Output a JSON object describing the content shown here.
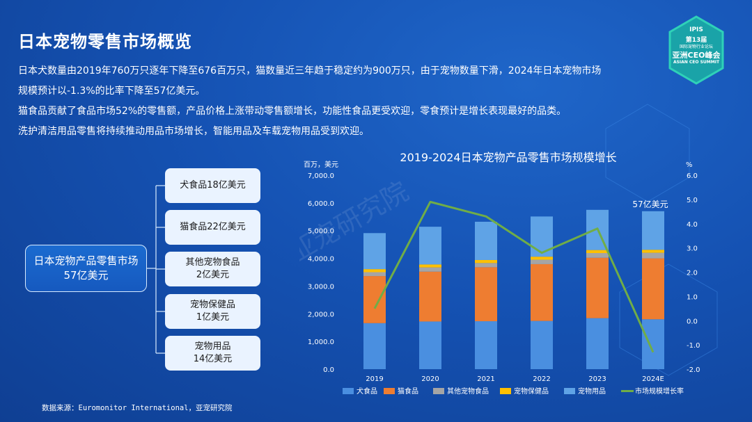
{
  "page": {
    "title": "日本宠物零售市场概览",
    "intro_lines": [
      "日本犬数量由2019年760万只逐年下降至676百万只，猫数量近三年趋于稳定约为900万只，由于宠物数量下滑，2024年日本宠物市场",
      "规模预计以-1.3%的比率下降至57亿美元。",
      "猫食品贡献了食品市场52%的零售额，产品价格上涨带动零售额增长，功能性食品更受欢迎，零食预计是增长表现最好的品类。",
      "洗护清洁用品零售将持续推动用品市场增长，智能用品及车载宠物用品受到欢迎。"
    ],
    "source": "数据来源：Euromonitor International，亚宠研究院",
    "watermark": "亚宠研究院"
  },
  "logo": {
    "line1": "IPIS",
    "line2": "第13届",
    "line3": "国际宠物行业论坛",
    "line4": "亚洲CEO峰会",
    "line5": "ASIAN CEO SUMMIT"
  },
  "tree": {
    "root_line1": "日本宠物产品零售市场",
    "root_line2": "57亿美元",
    "nodes": [
      {
        "line1": "犬食品18亿美元",
        "line2": ""
      },
      {
        "line1": "猫食品22亿美元",
        "line2": ""
      },
      {
        "line1": "其他宠物食品",
        "line2": "2亿美元"
      },
      {
        "line1": "宠物保健品",
        "line2": "1亿美元"
      },
      {
        "line1": "宠物用品",
        "line2": "14亿美元"
      }
    ]
  },
  "colors": {
    "dog_food": "#4a8fe0",
    "cat_food": "#ee7d31",
    "other_food": "#a5a5a5",
    "health": "#ffc000",
    "supplies": "#5fa3e6",
    "growth": "#70ad47"
  },
  "chart_data": {
    "type": "bar",
    "stacked": true,
    "title": "2019-2024日本宠物产品零售市场规模增长",
    "y_left_unit": "百万，美元",
    "y_right_unit": "%",
    "y_left_ticks": [
      "0.0",
      "1,000.0",
      "2,000.0",
      "3,000.0",
      "4,000.0",
      "5,000.0",
      "6,000.0",
      "7,000.0"
    ],
    "y_right_ticks": [
      "-2.0",
      "-1.0",
      "0.0",
      "1.0",
      "2.0",
      "3.0",
      "4.0",
      "5.0",
      "6.0"
    ],
    "ylim_left": [
      0,
      7000
    ],
    "ylim_right": [
      -2,
      6
    ],
    "categories": [
      "2019",
      "2020",
      "2021",
      "2022",
      "2023",
      "2024E"
    ],
    "series": [
      {
        "name": "犬食品",
        "values": [
          1660,
          1720,
          1730,
          1740,
          1840,
          1800
        ]
      },
      {
        "name": "猫食品",
        "values": [
          1700,
          1800,
          1950,
          2050,
          2180,
          2200
        ]
      },
      {
        "name": "其他宠物食品",
        "values": [
          140,
          150,
          150,
          160,
          170,
          200
        ]
      },
      {
        "name": "宠物保健品",
        "values": [
          110,
          110,
          110,
          110,
          110,
          110
        ]
      },
      {
        "name": "宠物用品",
        "values": [
          1300,
          1360,
          1380,
          1450,
          1450,
          1390
        ]
      }
    ],
    "line_series": {
      "name": "市场规模增长率",
      "axis": "right",
      "values": [
        0.5,
        4.9,
        4.3,
        2.8,
        3.8,
        -1.3
      ]
    },
    "annotation": "57亿美元",
    "legend_position": "bottom"
  }
}
